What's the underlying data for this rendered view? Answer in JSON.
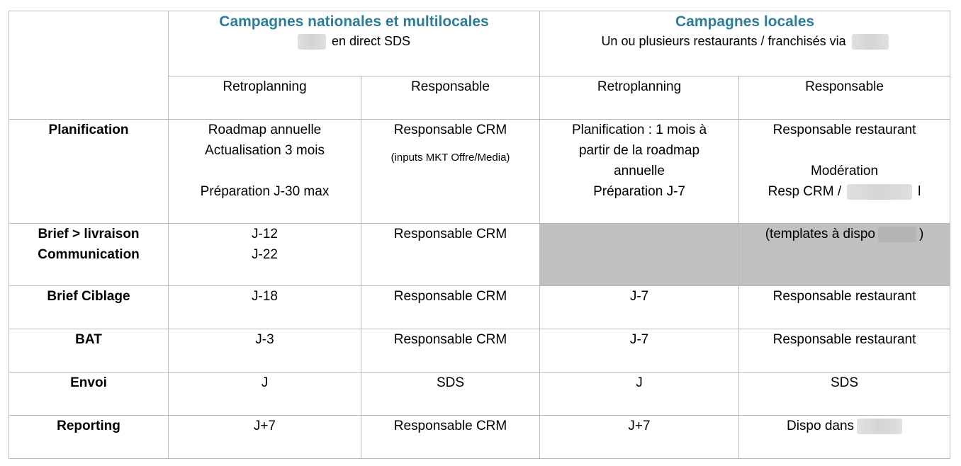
{
  "header": {
    "national": {
      "title": "Campagnes nationales et multilocales",
      "subtitle": "en direct SDS"
    },
    "local": {
      "title": "Campagnes locales",
      "subtitle": "Un ou plusieurs restaurants / franchisés via"
    },
    "col_retroplanning": "Retroplanning",
    "col_responsable": "Responsable"
  },
  "rows": [
    {
      "stage": "Planification",
      "nat_retro": [
        "Roadmap annuelle",
        "Actualisation 3 mois",
        "Préparation J-30 max"
      ],
      "nat_resp": "Responsable CRM",
      "nat_resp_note": "(inputs MKT Offre/Media)",
      "loc_retro": [
        "Planification : 1 mois à",
        "partir de la roadmap",
        "annuelle",
        "Préparation J-7"
      ],
      "loc_resp": [
        "Responsable restaurant",
        "Modération",
        "Resp CRM /",
        "l"
      ]
    },
    {
      "stage": [
        "Brief > livraison",
        "Communication"
      ],
      "nat_retro": [
        "J-12",
        "J-22"
      ],
      "nat_resp": "Responsable CRM",
      "loc_resp": [
        "(templates à dispo",
        ")"
      ]
    },
    {
      "stage": "Brief Ciblage",
      "nat_retro": "J-18",
      "nat_resp": "Responsable CRM",
      "loc_retro": "J-7",
      "loc_resp": "Responsable restaurant"
    },
    {
      "stage": "BAT",
      "nat_retro": "J-3",
      "nat_resp": "Responsable CRM",
      "loc_retro": "J-7",
      "loc_resp": "Responsable restaurant"
    },
    {
      "stage": "Envoi",
      "nat_retro": "J",
      "nat_resp": "SDS",
      "loc_retro": "J",
      "loc_resp": "SDS"
    },
    {
      "stage": "Reporting",
      "nat_retro": "J+7",
      "nat_resp": "Responsable CRM",
      "loc_retro": "J+7",
      "loc_resp": "Dispo dans"
    }
  ]
}
